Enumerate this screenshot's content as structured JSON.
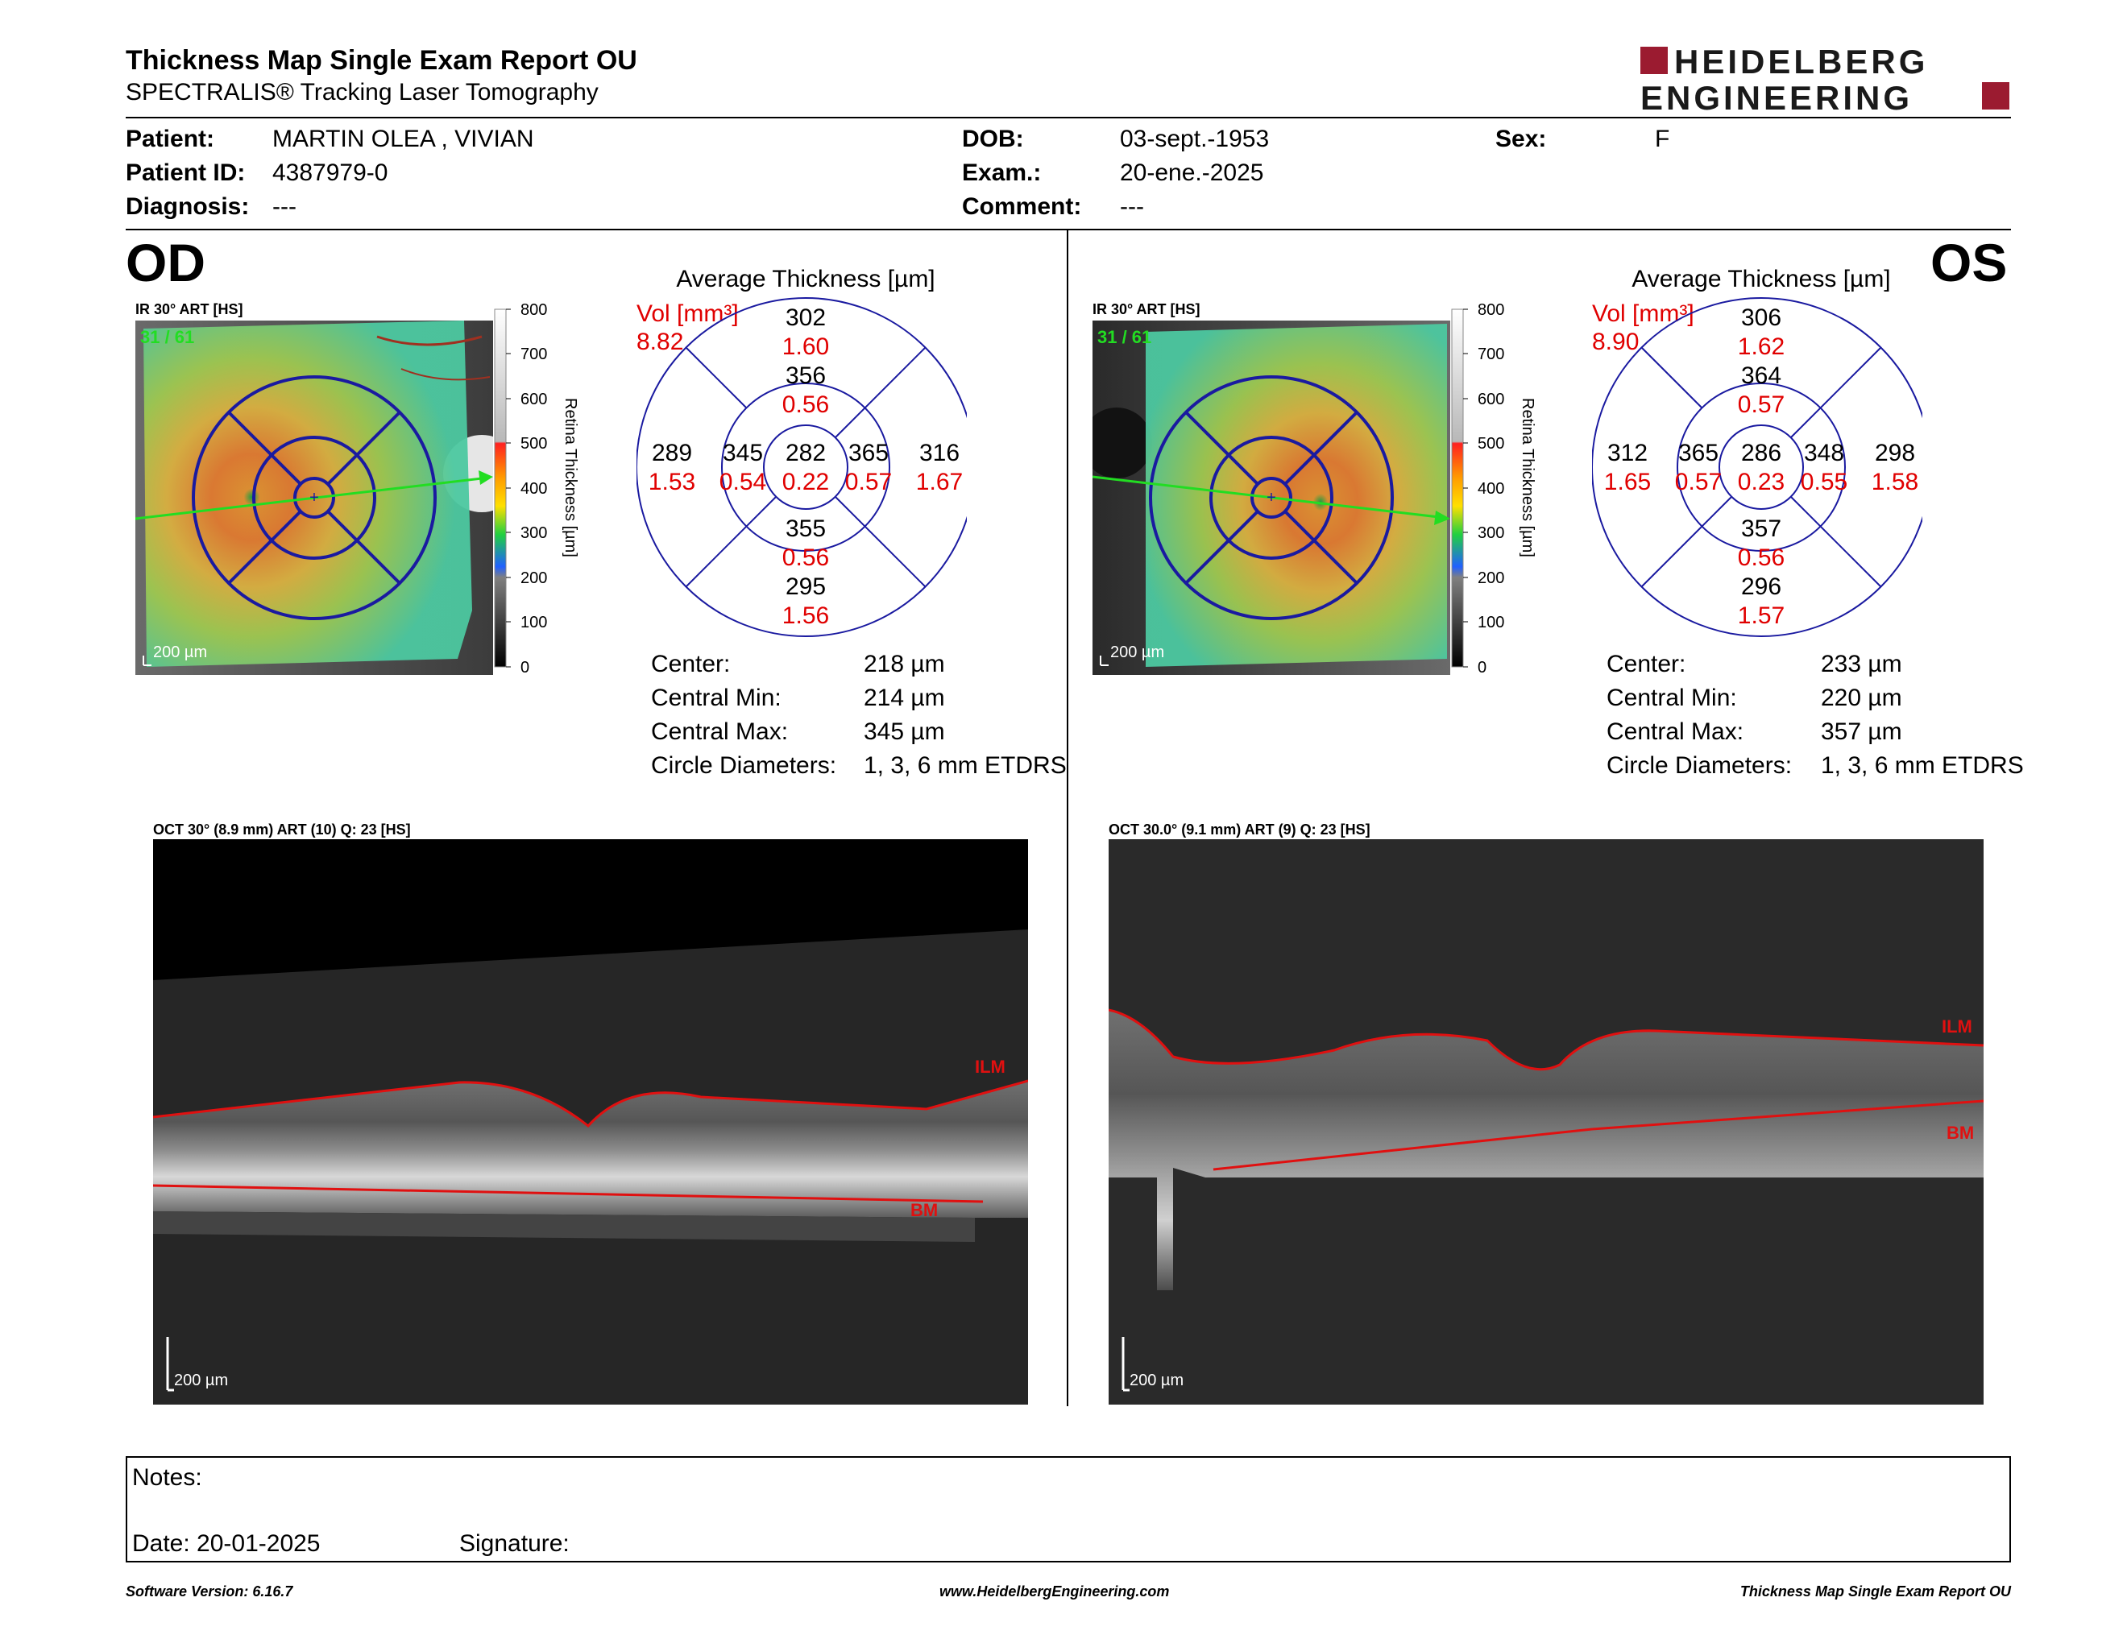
{
  "report": {
    "title": "Thickness Map Single Exam Report OU",
    "subtitle": "SPECTRALIS® Tracking Laser Tomography",
    "logo_line1": "HEIDELBERG",
    "logo_line2": "ENGINEERING"
  },
  "patient": {
    "patient_label": "Patient:",
    "patient_value": "MARTIN OLEA , VIVIAN",
    "id_label": "Patient ID:",
    "id_value": "4387979-0",
    "diagnosis_label": "Diagnosis:",
    "diagnosis_value": "---",
    "dob_label": "DOB:",
    "dob_value": "03-sept.-1953",
    "exam_label": "Exam.:",
    "exam_value": "20-ene.-2025",
    "comment_label": "Comment:",
    "comment_value": "---",
    "sex_label": "Sex:",
    "sex_value": "F"
  },
  "colors": {
    "brand": "#9b1b30",
    "ring": "#1a1aa0",
    "volume_red": "#e00000",
    "scan_line": "#22dd22",
    "layer_line": "#e01010"
  },
  "od": {
    "eye": "OD",
    "ir_label": "IR 30° ART [HS]",
    "frame_counter": "31 / 61",
    "scale_label": "200 µm",
    "colorbar_ticks": [
      "800",
      "700",
      "600",
      "500",
      "400",
      "300",
      "200",
      "100",
      "0"
    ],
    "colorbar_title": "Retina Thickness [µm]",
    "chart_title": "Average Thickness [µm]",
    "vol_label": "Vol [mm³]",
    "vol_total": "8.82",
    "sectors": {
      "center": {
        "t": "282",
        "v": "0.22"
      },
      "inner_sup": {
        "t": "356",
        "v": "0.56"
      },
      "inner_inf": {
        "t": "355",
        "v": "0.56"
      },
      "inner_temp": {
        "t": "345",
        "v": "0.54"
      },
      "inner_nasal": {
        "t": "365",
        "v": "0.57"
      },
      "outer_sup": {
        "t": "302",
        "v": "1.60"
      },
      "outer_inf": {
        "t": "295",
        "v": "1.56"
      },
      "outer_temp": {
        "t": "289",
        "v": "1.53"
      },
      "outer_nasal": {
        "t": "316",
        "v": "1.67"
      }
    },
    "stats": [
      {
        "label": "Center:",
        "value": "218 µm"
      },
      {
        "label": "Central Min:",
        "value": "214 µm"
      },
      {
        "label": "Central Max:",
        "value": "345 µm"
      },
      {
        "label": "Circle Diameters:",
        "value": "1, 3, 6 mm ETDRS"
      }
    ],
    "oct_label": "OCT 30° (8.9 mm) ART (10) Q: 23 [HS]",
    "ilm": "ILM",
    "bm": "BM",
    "oct_scale": "200 µm"
  },
  "os": {
    "eye": "OS",
    "ir_label": "IR 30° ART [HS]",
    "frame_counter": "31 / 61",
    "scale_label": "200 µm",
    "colorbar_ticks": [
      "800",
      "700",
      "600",
      "500",
      "400",
      "300",
      "200",
      "100",
      "0"
    ],
    "colorbar_title": "Retina Thickness [µm]",
    "chart_title": "Average Thickness [µm]",
    "vol_label": "Vol [mm³]",
    "vol_total": "8.90",
    "sectors": {
      "center": {
        "t": "286",
        "v": "0.23"
      },
      "inner_sup": {
        "t": "364",
        "v": "0.57"
      },
      "inner_inf": {
        "t": "357",
        "v": "0.56"
      },
      "inner_temp": {
        "t": "348",
        "v": "0.55"
      },
      "inner_nasal": {
        "t": "365",
        "v": "0.57"
      },
      "outer_sup": {
        "t": "306",
        "v": "1.62"
      },
      "outer_inf": {
        "t": "296",
        "v": "1.57"
      },
      "outer_temp": {
        "t": "298",
        "v": "1.58"
      },
      "outer_nasal": {
        "t": "312",
        "v": "1.65"
      }
    },
    "stats": [
      {
        "label": "Center:",
        "value": "233 µm"
      },
      {
        "label": "Central Min:",
        "value": "220 µm"
      },
      {
        "label": "Central Max:",
        "value": "357 µm"
      },
      {
        "label": "Circle Diameters:",
        "value": "1, 3, 6 mm ETDRS"
      }
    ],
    "oct_label": "OCT 30.0° (9.1 mm) ART (9) Q: 23 [HS]",
    "ilm": "ILM",
    "bm": "BM",
    "oct_scale": "200 µm"
  },
  "notes": {
    "notes_label": "Notes:",
    "date_label": "Date: 20-01-2025",
    "signature_label": "Signature:"
  },
  "footer": {
    "version": "Software Version: 6.16.7",
    "website": "www.HeidelbergEngineering.com",
    "report_name": "Thickness Map Single Exam Report OU"
  }
}
